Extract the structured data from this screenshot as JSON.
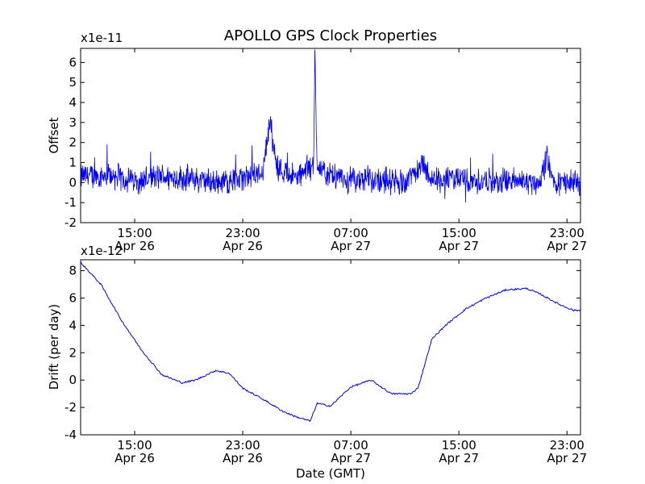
{
  "chart_data": [
    {
      "type": "line",
      "title": "APOLLO GPS Clock Properties",
      "offset_label": "x1e-11",
      "xlabel": "",
      "ylabel": "Offset",
      "ylim": [
        -2,
        6.7
      ],
      "yticks": [
        "-2",
        "-1",
        "0",
        "1",
        "2",
        "3",
        "4",
        "5",
        "6"
      ],
      "xlim": [
        "2008-04-26T11:00",
        "2008-04-28T00:00"
      ],
      "xticks": [
        {
          "time": "2008-04-26T15:00",
          "line1": "15:00",
          "line2": "Apr 26"
        },
        {
          "time": "2008-04-26T23:00",
          "line1": "23:00",
          "line2": "Apr 26"
        },
        {
          "time": "2008-04-27T07:00",
          "line1": "07:00",
          "line2": "Apr 27"
        },
        {
          "time": "2008-04-27T15:00",
          "line1": "15:00",
          "line2": "Apr 27"
        },
        {
          "time": "2008-04-27T23:00",
          "line1": "23:00",
          "line2": "Apr 27"
        }
      ],
      "color": "#0000ff",
      "series": [
        {
          "time": [
            "2008-04-26T11:00",
            "2008-04-26T13:00",
            "2008-04-26T15:00",
            "2008-04-26T17:00",
            "2008-04-26T19:00",
            "2008-04-26T21:00",
            "2008-04-26T23:00",
            "2008-04-27T00:30",
            "2008-04-27T01:00",
            "2008-04-27T01:30",
            "2008-04-27T03:00",
            "2008-04-27T04:15",
            "2008-04-27T04:20",
            "2008-04-27T04:30",
            "2008-04-27T05:00",
            "2008-04-27T07:00",
            "2008-04-27T09:00",
            "2008-04-27T11:00",
            "2008-04-27T12:15",
            "2008-04-27T13:00",
            "2008-04-27T15:00",
            "2008-04-27T17:00",
            "2008-04-27T19:00",
            "2008-04-27T21:00",
            "2008-04-27T21:30",
            "2008-04-27T22:00",
            "2008-04-28T00:00"
          ],
          "values": [
            0.3,
            0.4,
            0.1,
            0.3,
            0.2,
            0.0,
            0.2,
            0.6,
            3.2,
            0.8,
            0.2,
            0.8,
            6.6,
            1.0,
            0.4,
            0.1,
            0.2,
            0.0,
            1.0,
            0.1,
            0.2,
            0.0,
            0.1,
            0.0,
            1.2,
            0.0,
            0.0
          ],
          "noise_amplitude": 0.8
        }
      ]
    },
    {
      "type": "line",
      "title": "",
      "offset_label": "x1e-12",
      "xlabel": "Date (GMT)",
      "ylabel": "Drift (per day)",
      "ylim": [
        -4,
        8.8
      ],
      "yticks": [
        "-4",
        "-2",
        "0",
        "2",
        "4",
        "6",
        "8"
      ],
      "xlim": [
        "2008-04-26T11:00",
        "2008-04-28T00:00"
      ],
      "xticks": [
        {
          "time": "2008-04-26T15:00",
          "line1": "15:00",
          "line2": "Apr 26"
        },
        {
          "time": "2008-04-26T23:00",
          "line1": "23:00",
          "line2": "Apr 26"
        },
        {
          "time": "2008-04-27T07:00",
          "line1": "07:00",
          "line2": "Apr 27"
        },
        {
          "time": "2008-04-27T15:00",
          "line1": "15:00",
          "line2": "Apr 27"
        },
        {
          "time": "2008-04-27T23:00",
          "line1": "23:00",
          "line2": "Apr 27"
        }
      ],
      "color": "#0000ff",
      "series": [
        {
          "time": [
            "2008-04-26T11:00",
            "2008-04-26T12:30",
            "2008-04-26T14:00",
            "2008-04-26T15:30",
            "2008-04-26T17:00",
            "2008-04-26T18:30",
            "2008-04-26T19:30",
            "2008-04-26T21:00",
            "2008-04-26T22:00",
            "2008-04-26T23:00",
            "2008-04-27T00:30",
            "2008-04-27T02:00",
            "2008-04-27T03:00",
            "2008-04-27T04:00",
            "2008-04-27T04:30",
            "2008-04-27T05:30",
            "2008-04-27T07:00",
            "2008-04-27T08:30",
            "2008-04-27T10:00",
            "2008-04-27T11:30",
            "2008-04-27T12:00",
            "2008-04-27T13:00",
            "2008-04-27T14:00",
            "2008-04-27T15:30",
            "2008-04-27T17:00",
            "2008-04-27T18:30",
            "2008-04-27T20:00",
            "2008-04-27T21:00",
            "2008-04-27T22:30",
            "2008-04-27T23:30",
            "2008-04-28T00:00"
          ],
          "values": [
            8.6,
            7.0,
            4.4,
            2.2,
            0.4,
            -0.2,
            0.0,
            0.7,
            0.5,
            -0.6,
            -1.4,
            -2.3,
            -2.7,
            -3.0,
            -1.7,
            -1.9,
            -0.5,
            0.0,
            -1.0,
            -1.0,
            -0.5,
            3.0,
            4.0,
            5.2,
            6.0,
            6.6,
            6.7,
            6.3,
            5.5,
            5.1,
            5.1
          ]
        }
      ]
    }
  ]
}
